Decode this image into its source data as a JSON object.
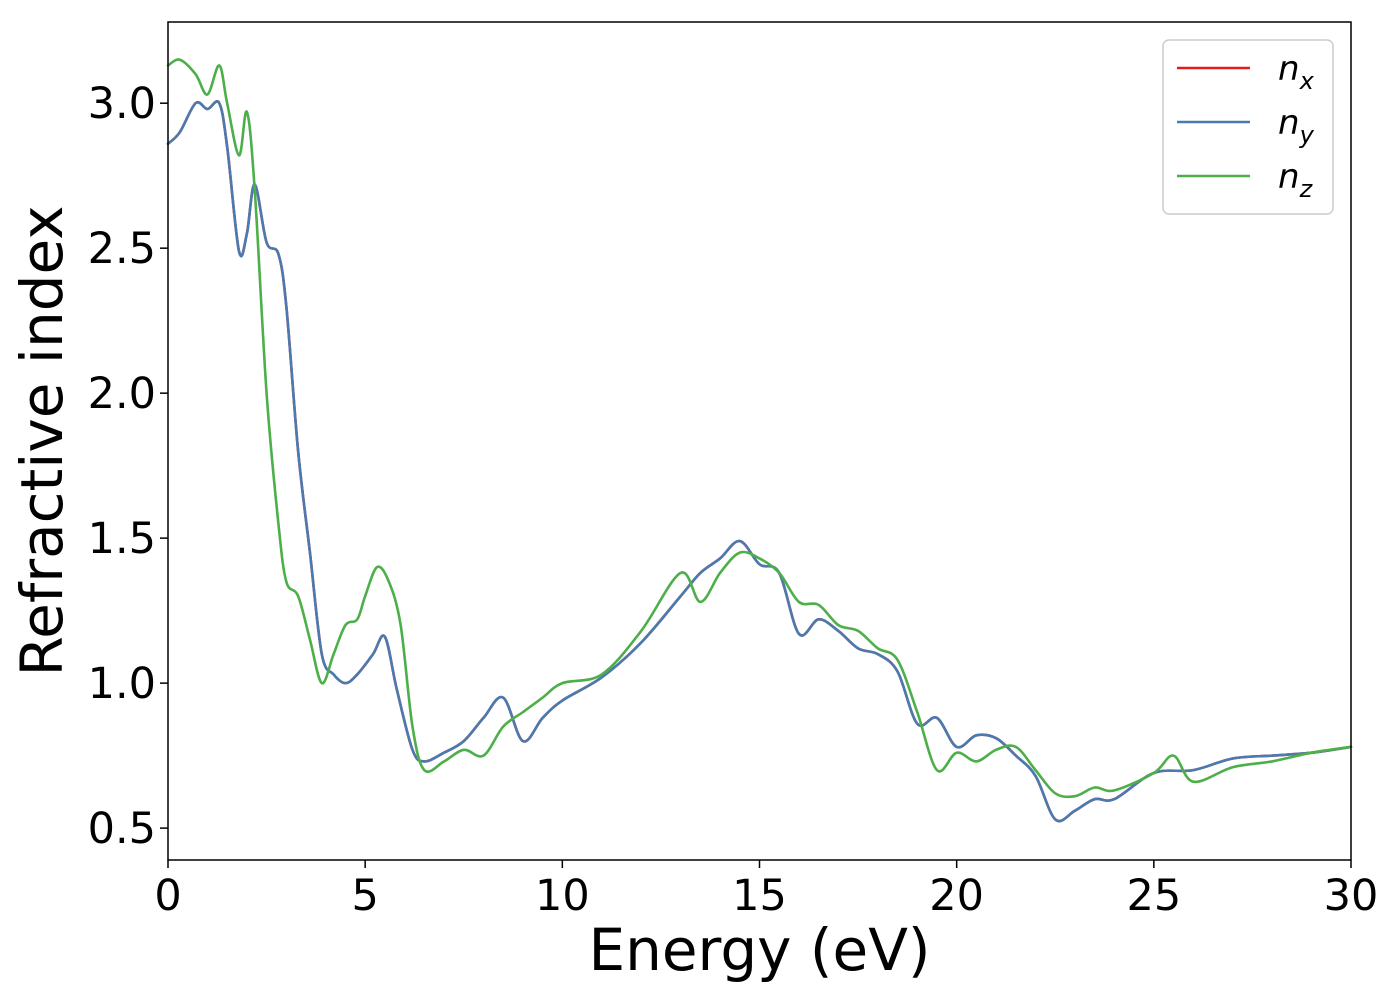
{
  "chart_data": {
    "type": "line",
    "title": "",
    "xlabel": "Energy (eV)",
    "ylabel": "Refractive index",
    "xlim": [
      0,
      30
    ],
    "ylim": [
      0.39,
      3.28
    ],
    "xticks": [
      0,
      5,
      10,
      15,
      20,
      25,
      30
    ],
    "xtick_labels": [
      "0",
      "5",
      "10",
      "15",
      "20",
      "25",
      "30"
    ],
    "yticks": [
      0.5,
      1.0,
      1.5,
      2.0,
      2.5,
      3.0
    ],
    "ytick_labels": [
      "0.5",
      "1.0",
      "1.5",
      "2.0",
      "2.5",
      "3.0"
    ],
    "grid": false,
    "legend_position": "top-right",
    "series": [
      {
        "name": "n_x",
        "legend_main": "n",
        "legend_sub": "x",
        "color": "#e41a1c",
        "x": [
          0,
          0.3,
          0.7,
          1.0,
          1.3,
          1.5,
          1.8,
          2.0,
          2.2,
          2.5,
          2.8,
          3.0,
          3.3,
          3.6,
          3.9,
          4.2,
          4.5,
          4.8,
          5.2,
          5.5,
          5.8,
          6.2,
          6.5,
          7.0,
          7.5,
          8.0,
          8.5,
          9.0,
          9.5,
          10.0,
          11.0,
          12.0,
          13.0,
          13.5,
          14.0,
          14.5,
          15.0,
          15.5,
          16.0,
          16.5,
          17.0,
          17.5,
          18.0,
          18.5,
          19.0,
          19.5,
          20.0,
          20.5,
          21.0,
          21.5,
          22.0,
          22.5,
          23.0,
          23.5,
          24.0,
          25.0,
          26.0,
          27.0,
          28.0,
          29.0,
          30.0
        ],
        "y": [
          2.86,
          2.9,
          3.0,
          2.98,
          3.0,
          2.85,
          2.49,
          2.55,
          2.72,
          2.52,
          2.48,
          2.3,
          1.8,
          1.45,
          1.1,
          1.03,
          1.0,
          1.03,
          1.1,
          1.16,
          0.98,
          0.77,
          0.73,
          0.76,
          0.8,
          0.88,
          0.95,
          0.8,
          0.88,
          0.94,
          1.02,
          1.14,
          1.3,
          1.38,
          1.43,
          1.49,
          1.41,
          1.38,
          1.17,
          1.22,
          1.18,
          1.12,
          1.1,
          1.04,
          0.86,
          0.88,
          0.78,
          0.82,
          0.81,
          0.75,
          0.68,
          0.53,
          0.56,
          0.6,
          0.6,
          0.69,
          0.7,
          0.74,
          0.75,
          0.76,
          0.78
        ]
      },
      {
        "name": "n_y",
        "legend_main": "n",
        "legend_sub": "y",
        "color": "#4a7bb0",
        "x": [
          0,
          0.3,
          0.7,
          1.0,
          1.3,
          1.5,
          1.8,
          2.0,
          2.2,
          2.5,
          2.8,
          3.0,
          3.3,
          3.6,
          3.9,
          4.2,
          4.5,
          4.8,
          5.2,
          5.5,
          5.8,
          6.2,
          6.5,
          7.0,
          7.5,
          8.0,
          8.5,
          9.0,
          9.5,
          10.0,
          11.0,
          12.0,
          13.0,
          13.5,
          14.0,
          14.5,
          15.0,
          15.5,
          16.0,
          16.5,
          17.0,
          17.5,
          18.0,
          18.5,
          19.0,
          19.5,
          20.0,
          20.5,
          21.0,
          21.5,
          22.0,
          22.5,
          23.0,
          23.5,
          24.0,
          25.0,
          26.0,
          27.0,
          28.0,
          29.0,
          30.0
        ],
        "y": [
          2.86,
          2.9,
          3.0,
          2.98,
          3.0,
          2.85,
          2.49,
          2.55,
          2.72,
          2.52,
          2.48,
          2.3,
          1.8,
          1.45,
          1.1,
          1.03,
          1.0,
          1.03,
          1.1,
          1.16,
          0.98,
          0.77,
          0.73,
          0.76,
          0.8,
          0.88,
          0.95,
          0.8,
          0.88,
          0.94,
          1.02,
          1.14,
          1.3,
          1.38,
          1.43,
          1.49,
          1.41,
          1.38,
          1.17,
          1.22,
          1.18,
          1.12,
          1.1,
          1.04,
          0.86,
          0.88,
          0.78,
          0.82,
          0.81,
          0.75,
          0.68,
          0.53,
          0.56,
          0.6,
          0.6,
          0.69,
          0.7,
          0.74,
          0.75,
          0.76,
          0.78
        ]
      },
      {
        "name": "n_z",
        "legend_main": "n",
        "legend_sub": "z",
        "color": "#4daf4a",
        "x": [
          0,
          0.3,
          0.7,
          1.0,
          1.3,
          1.5,
          1.8,
          2.0,
          2.2,
          2.5,
          2.8,
          3.0,
          3.3,
          3.6,
          3.9,
          4.2,
          4.5,
          4.8,
          5.0,
          5.3,
          5.6,
          5.9,
          6.2,
          6.5,
          7.0,
          7.5,
          8.0,
          8.5,
          9.0,
          9.5,
          10.0,
          11.0,
          12.0,
          13.0,
          13.5,
          14.0,
          14.5,
          15.0,
          15.5,
          16.0,
          16.5,
          17.0,
          17.5,
          18.0,
          18.5,
          19.0,
          19.5,
          20.0,
          20.5,
          21.0,
          21.5,
          22.0,
          22.5,
          23.0,
          23.5,
          24.0,
          25.0,
          25.5,
          26.0,
          27.0,
          28.0,
          29.0,
          30.0
        ],
        "y": [
          3.13,
          3.15,
          3.1,
          3.03,
          3.13,
          3.0,
          2.82,
          2.97,
          2.7,
          2.0,
          1.55,
          1.35,
          1.3,
          1.15,
          1.0,
          1.1,
          1.2,
          1.22,
          1.3,
          1.4,
          1.35,
          1.2,
          0.85,
          0.7,
          0.73,
          0.77,
          0.75,
          0.85,
          0.9,
          0.95,
          1.0,
          1.03,
          1.18,
          1.38,
          1.28,
          1.38,
          1.45,
          1.43,
          1.38,
          1.28,
          1.27,
          1.2,
          1.18,
          1.12,
          1.08,
          0.9,
          0.7,
          0.76,
          0.73,
          0.77,
          0.78,
          0.7,
          0.62,
          0.61,
          0.64,
          0.63,
          0.69,
          0.75,
          0.66,
          0.71,
          0.73,
          0.76,
          0.78
        ]
      }
    ]
  }
}
